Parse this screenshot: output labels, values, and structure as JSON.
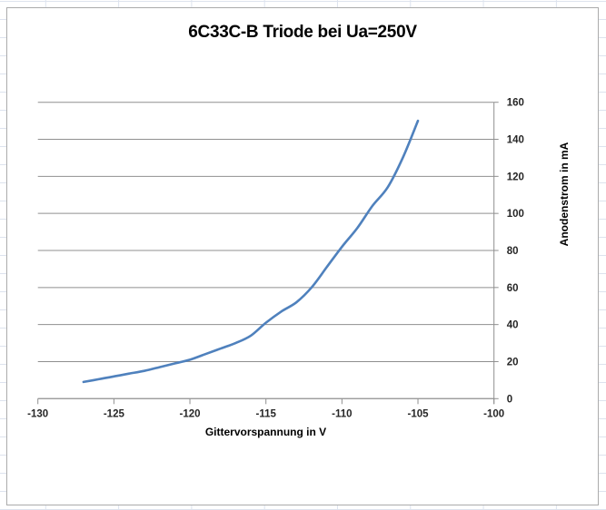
{
  "sheet": {
    "grid_color": "#dde3ee"
  },
  "chart": {
    "background": "#ffffff",
    "border_color": "#ababab"
  },
  "chart_data": {
    "type": "line",
    "title": "6C33C-B Triode bei Ua=250V",
    "xlabel": "Gittervorspannung in V",
    "ylabel": "Anodenstrom in mA",
    "xlim": [
      -130,
      -100
    ],
    "ylim": [
      0,
      160
    ],
    "x_ticks": [
      -130,
      -125,
      -120,
      -115,
      -110,
      -105,
      -100
    ],
    "y_ticks": [
      0,
      20,
      40,
      60,
      80,
      100,
      120,
      140,
      160
    ],
    "y_axis_side": "right",
    "grid": "horizontal-major",
    "legend": "none",
    "axis_color": "#8f8f8f",
    "gridline_color": "#8f8f8f",
    "tick_label_color": "#262626",
    "series": [
      {
        "name": "Anodenstrom",
        "color": "#4f81bd",
        "smoothed": true,
        "x": [
          -127,
          -126,
          -125,
          -124,
          -123,
          -122,
          -121,
          -120,
          -119,
          -118,
          -117,
          -116,
          -115,
          -114,
          -113,
          -112,
          -111,
          -110,
          -109,
          -108,
          -107,
          -106,
          -105
        ],
        "y": [
          9,
          10.5,
          12,
          13.5,
          15,
          17,
          19,
          21,
          24,
          27,
          30,
          34,
          41,
          47,
          52,
          60,
          71,
          82,
          92,
          104,
          114,
          130,
          150
        ]
      }
    ]
  }
}
